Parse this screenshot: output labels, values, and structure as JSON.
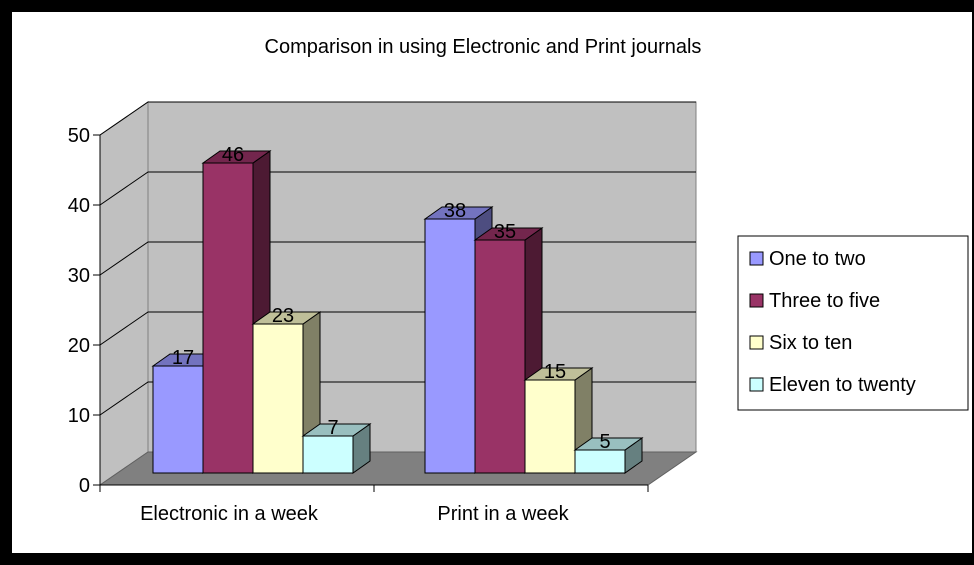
{
  "chart_data": {
    "type": "bar",
    "title": "Comparison in using Electronic and Print journals",
    "categories": [
      "Electronic in a week",
      "Print in a week"
    ],
    "series": [
      {
        "name": "One to two",
        "values": [
          17,
          38
        ],
        "color": "#9999FF"
      },
      {
        "name": "Three to five",
        "values": [
          46,
          35
        ],
        "color": "#993366"
      },
      {
        "name": "Six to ten",
        "values": [
          23,
          15
        ],
        "color": "#FFFFCC"
      },
      {
        "name": "Eleven to twenty",
        "values": [
          7,
          5
        ],
        "color": "#CCFFFF"
      }
    ],
    "yticks": [
      "0",
      "10",
      "20",
      "30",
      "40",
      "50"
    ],
    "ylim": [
      0,
      50
    ],
    "grid": true,
    "style": "3d-clustered-column",
    "legend_position": "right",
    "wall_color": "#C0C0C0",
    "floor_color": "#808080"
  }
}
